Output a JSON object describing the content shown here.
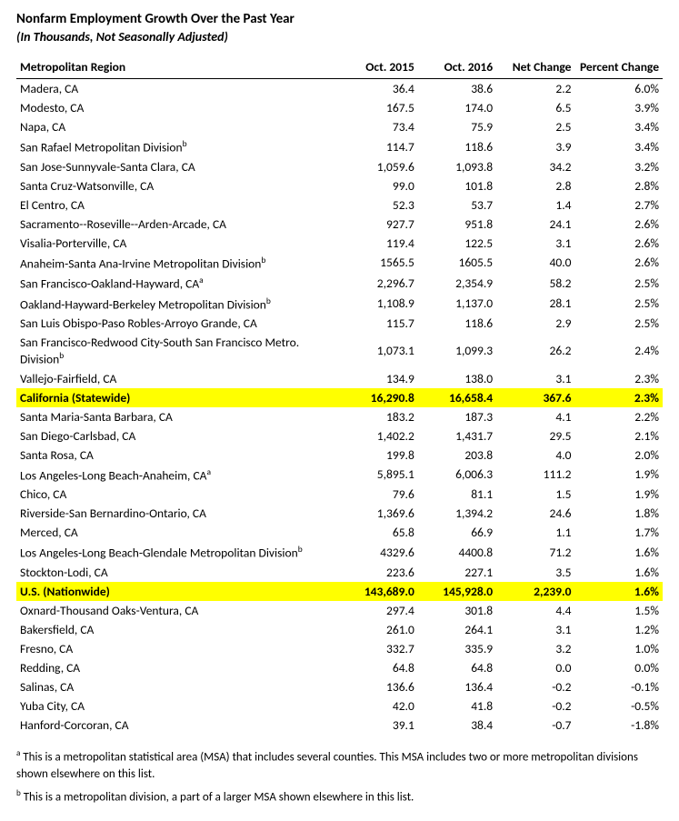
{
  "title": "Nonfarm Employment Growth Over the Past Year",
  "subtitle": "(In Thousands, Not Seasonally Adjusted)",
  "columns": [
    "Metropolitan Region",
    "Oct. 2015",
    "Oct. 2016",
    "Net Change",
    "Percent Change"
  ],
  "highlight_color": "#ffff00",
  "rows": [
    {
      "region": "Madera, CA",
      "c1": "36.4",
      "c2": "38.6",
      "c3": "2.2",
      "c4": "6.0%",
      "sup": "",
      "hl": false
    },
    {
      "region": "Modesto, CA",
      "c1": "167.5",
      "c2": "174.0",
      "c3": "6.5",
      "c4": "3.9%",
      "sup": "",
      "hl": false
    },
    {
      "region": "Napa, CA",
      "c1": "73.4",
      "c2": "75.9",
      "c3": "2.5",
      "c4": "3.4%",
      "sup": "",
      "hl": false
    },
    {
      "region": "San Rafael Metropolitan Division",
      "c1": "114.7",
      "c2": "118.6",
      "c3": "3.9",
      "c4": "3.4%",
      "sup": "b",
      "hl": false
    },
    {
      "region": "San Jose-Sunnyvale-Santa Clara, CA",
      "c1": "1,059.6",
      "c2": "1,093.8",
      "c3": "34.2",
      "c4": "3.2%",
      "sup": "",
      "hl": false
    },
    {
      "region": "Santa Cruz-Watsonville, CA",
      "c1": "99.0",
      "c2": "101.8",
      "c3": "2.8",
      "c4": "2.8%",
      "sup": "",
      "hl": false
    },
    {
      "region": "El Centro, CA",
      "c1": "52.3",
      "c2": "53.7",
      "c3": "1.4",
      "c4": "2.7%",
      "sup": "",
      "hl": false
    },
    {
      "region": "Sacramento--Roseville--Arden-Arcade, CA",
      "c1": "927.7",
      "c2": "951.8",
      "c3": "24.1",
      "c4": "2.6%",
      "sup": "",
      "hl": false
    },
    {
      "region": "Visalia-Porterville, CA",
      "c1": "119.4",
      "c2": "122.5",
      "c3": "3.1",
      "c4": "2.6%",
      "sup": "",
      "hl": false
    },
    {
      "region": "Anaheim-Santa Ana-Irvine Metropolitan Division",
      "c1": "1565.5",
      "c2": "1605.5",
      "c3": "40.0",
      "c4": "2.6%",
      "sup": "b",
      "hl": false
    },
    {
      "region": "San Francisco-Oakland-Hayward, CA",
      "c1": "2,296.7",
      "c2": "2,354.9",
      "c3": "58.2",
      "c4": "2.5%",
      "sup": "a",
      "hl": false
    },
    {
      "region": "Oakland-Hayward-Berkeley Metropolitan Division",
      "c1": "1,108.9",
      "c2": "1,137.0",
      "c3": "28.1",
      "c4": "2.5%",
      "sup": "b",
      "hl": false
    },
    {
      "region": "San Luis Obispo-Paso Robles-Arroyo Grande, CA",
      "c1": "115.7",
      "c2": "118.6",
      "c3": "2.9",
      "c4": "2.5%",
      "sup": "",
      "hl": false
    },
    {
      "region": "San Francisco-Redwood City-South San Francisco Metro. Division",
      "c1": "1,073.1",
      "c2": "1,099.3",
      "c3": "26.2",
      "c4": "2.4%",
      "sup": "b",
      "hl": false
    },
    {
      "region": "Vallejo-Fairfield, CA",
      "c1": "134.9",
      "c2": "138.0",
      "c3": "3.1",
      "c4": "2.3%",
      "sup": "",
      "hl": false
    },
    {
      "region": "California (Statewide)",
      "c1": "16,290.8",
      "c2": "16,658.4",
      "c3": "367.6",
      "c4": "2.3%",
      "sup": "",
      "hl": true
    },
    {
      "region": "Santa Maria-Santa Barbara, CA",
      "c1": "183.2",
      "c2": "187.3",
      "c3": "4.1",
      "c4": "2.2%",
      "sup": "",
      "hl": false
    },
    {
      "region": "San Diego-Carlsbad, CA",
      "c1": "1,402.2",
      "c2": "1,431.7",
      "c3": "29.5",
      "c4": "2.1%",
      "sup": "",
      "hl": false
    },
    {
      "region": "Santa Rosa, CA",
      "c1": "199.8",
      "c2": "203.8",
      "c3": "4.0",
      "c4": "2.0%",
      "sup": "",
      "hl": false
    },
    {
      "region": "Los Angeles-Long Beach-Anaheim, CA",
      "c1": "5,895.1",
      "c2": "6,006.3",
      "c3": "111.2",
      "c4": "1.9%",
      "sup": "a",
      "hl": false
    },
    {
      "region": "Chico, CA",
      "c1": "79.6",
      "c2": "81.1",
      "c3": "1.5",
      "c4": "1.9%",
      "sup": "",
      "hl": false
    },
    {
      "region": "Riverside-San Bernardino-Ontario, CA",
      "c1": "1,369.6",
      "c2": "1,394.2",
      "c3": "24.6",
      "c4": "1.8%",
      "sup": "",
      "hl": false
    },
    {
      "region": "Merced, CA",
      "c1": "65.8",
      "c2": "66.9",
      "c3": "1.1",
      "c4": "1.7%",
      "sup": "",
      "hl": false
    },
    {
      "region": "Los Angeles-Long Beach-Glendale Metropolitan Division",
      "c1": "4329.6",
      "c2": "4400.8",
      "c3": "71.2",
      "c4": "1.6%",
      "sup": "b",
      "hl": false
    },
    {
      "region": "Stockton-Lodi, CA",
      "c1": "223.6",
      "c2": "227.1",
      "c3": "3.5",
      "c4": "1.6%",
      "sup": "",
      "hl": false
    },
    {
      "region": "U.S. (Nationwide)",
      "c1": "143,689.0",
      "c2": "145,928.0",
      "c3": "2,239.0",
      "c4": "1.6%",
      "sup": "",
      "hl": true
    },
    {
      "region": "Oxnard-Thousand Oaks-Ventura, CA",
      "c1": "297.4",
      "c2": "301.8",
      "c3": "4.4",
      "c4": "1.5%",
      "sup": "",
      "hl": false
    },
    {
      "region": "Bakersfield, CA",
      "c1": "261.0",
      "c2": "264.1",
      "c3": "3.1",
      "c4": "1.2%",
      "sup": "",
      "hl": false
    },
    {
      "region": "Fresno, CA",
      "c1": "332.7",
      "c2": "335.9",
      "c3": "3.2",
      "c4": "1.0%",
      "sup": "",
      "hl": false
    },
    {
      "region": "Redding, CA",
      "c1": "64.8",
      "c2": "64.8",
      "c3": "0.0",
      "c4": "0.0%",
      "sup": "",
      "hl": false
    },
    {
      "region": "Salinas, CA",
      "c1": "136.6",
      "c2": "136.4",
      "c3": "-0.2",
      "c4": "-0.1%",
      "sup": "",
      "hl": false
    },
    {
      "region": "Yuba City, CA",
      "c1": "42.0",
      "c2": "41.8",
      "c3": "-0.2",
      "c4": "-0.5%",
      "sup": "",
      "hl": false
    },
    {
      "region": "Hanford-Corcoran, CA",
      "c1": "39.1",
      "c2": "38.4",
      "c3": "-0.7",
      "c4": "-1.8%",
      "sup": "",
      "hl": false
    }
  ],
  "footnote_a": " This is a metropolitan statistical area (MSA) that includes several counties. This MSA includes two or more metropolitan divisions shown elsewhere on this list.",
  "footnote_b": " This is a metropolitan division, a part of a larger MSA shown elsewhere in this list."
}
